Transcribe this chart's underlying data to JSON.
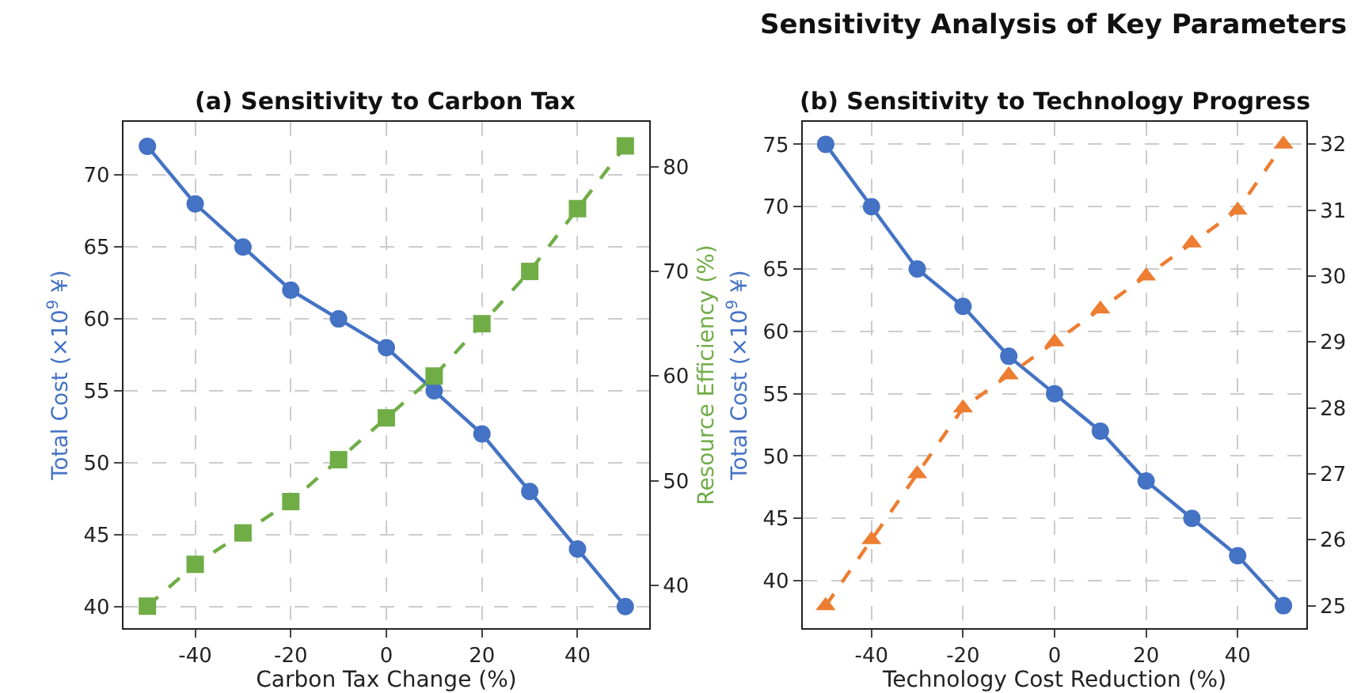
{
  "chart_data": [
    {
      "type": "line",
      "subtitle": "(a) Sensitivity to Carbon Tax",
      "xlabel": "Carbon Tax Change (%)",
      "ylabel": "Total Cost (×10$^{9}$ ¥)",
      "y2label": "Resource Efficiency (%)",
      "x": [
        -50,
        -40,
        -30,
        -20,
        -10,
        0,
        10,
        20,
        30,
        40,
        50
      ],
      "xlim": [
        -55,
        55
      ],
      "xticks": [
        -40,
        -20,
        0,
        20,
        40
      ],
      "ylim": [
        38.5,
        73.7
      ],
      "yticks": [
        40,
        45,
        50,
        55,
        60,
        65,
        70
      ],
      "y2lim": [
        35.9,
        84.3
      ],
      "y2ticks": [
        40,
        50,
        60,
        70,
        80
      ],
      "grid": true,
      "series": [
        {
          "color": "#4472c4",
          "marker": "circle",
          "line_style": "solid",
          "values": [
            72,
            68,
            65,
            62,
            60,
            58,
            55,
            52,
            48,
            44,
            40
          ]
        },
        {
          "color": "#70ad47",
          "marker": "square",
          "line_style": "dashed",
          "axis": "y2",
          "values": [
            38,
            42,
            45,
            48,
            52,
            56,
            60,
            65,
            70,
            76,
            82
          ]
        }
      ]
    },
    {
      "type": "line",
      "title": "Sensitivity Analysis of Key Parameters",
      "subtitle": "(b) Sensitivity to Technology Progress",
      "xlabel": "Technology Cost Reduction (%)",
      "ylabel": "Total Cost (×10$^{9}$ ¥)",
      "x": [
        -50,
        -40,
        -30,
        -20,
        -10,
        0,
        10,
        20,
        30,
        40,
        50
      ],
      "xlim": [
        -55,
        55
      ],
      "xticks": [
        -40,
        -20,
        0,
        20,
        40
      ],
      "ylim": [
        36.2,
        76.8
      ],
      "yticks": [
        40,
        45,
        50,
        55,
        60,
        65,
        70,
        75
      ],
      "y2lim": [
        24.66,
        32.34
      ],
      "y2ticks": [
        25,
        26,
        27,
        28,
        29,
        30,
        31,
        32
      ],
      "grid": true,
      "series": [
        {
          "color": "#4472c4",
          "marker": "circle",
          "line_style": "solid",
          "values": [
            75,
            70,
            65,
            62,
            58,
            55,
            52,
            48,
            45,
            42,
            38
          ]
        },
        {
          "color": "#ed7d31",
          "marker": "triangle",
          "line_style": "dashed",
          "axis": "y2",
          "values": [
            25,
            26,
            27,
            28,
            28.5,
            29,
            29.5,
            30,
            30.5,
            31,
            32
          ]
        }
      ]
    }
  ]
}
